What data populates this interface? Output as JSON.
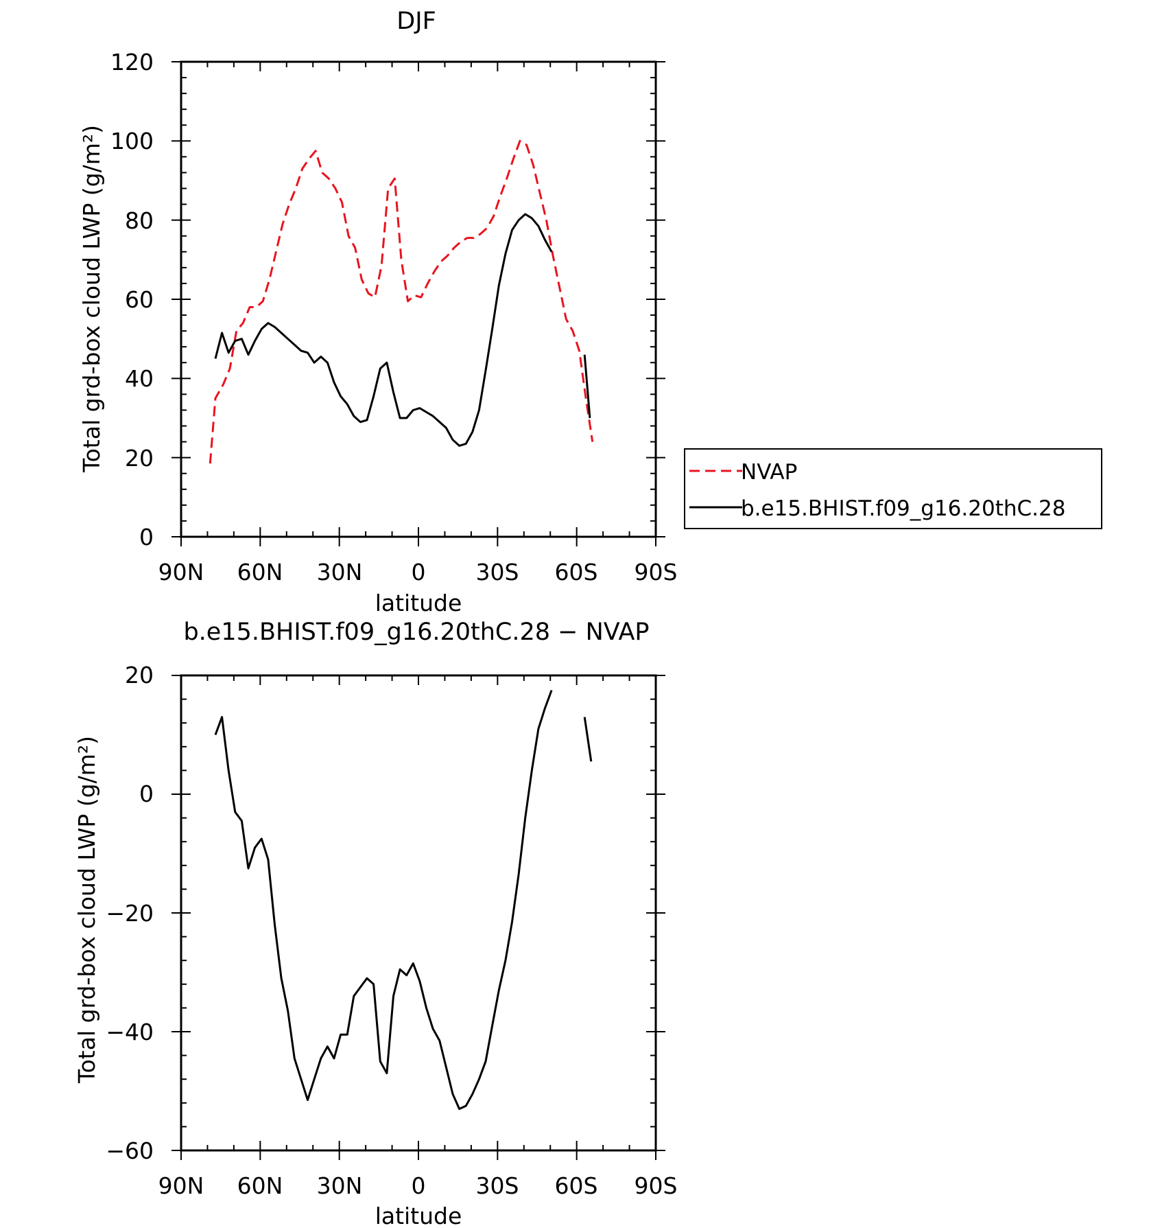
{
  "colors": {
    "nvap": "#e8141e",
    "model": "#000000",
    "axes": "#000000",
    "background": "#ffffff"
  },
  "chart_data": [
    {
      "type": "line",
      "title": "DJF",
      "xlabel": "latitude",
      "ylabel": "Total grd-box cloud LWP (g/m²)",
      "xlim": [
        -90,
        90
      ],
      "ylim": [
        0,
        120
      ],
      "grid": false,
      "legend_position": "right",
      "x_tick_values": [
        -90,
        -60,
        -30,
        0,
        30,
        60,
        90
      ],
      "x_tick_labels": [
        "90N",
        "60N",
        "30N",
        "0",
        "30S",
        "60S",
        "90S"
      ],
      "y_tick_values": [
        0,
        20,
        40,
        60,
        80,
        100,
        120
      ],
      "y_tick_labels": [
        "0",
        "20",
        "40",
        "60",
        "80",
        "100",
        "120"
      ],
      "series": [
        {
          "name": "NVAP",
          "color": "#e8141e",
          "dash": "dashed",
          "segments": [
            [
              [
                -79,
                18.5
              ],
              [
                -77,
                35
              ],
              [
                -74,
                38.5
              ],
              [
                -71.5,
                42.5
              ],
              [
                -69,
                52
              ],
              [
                -66.5,
                54
              ],
              [
                -64,
                58
              ],
              [
                -61.5,
                58
              ],
              [
                -59,
                59.5
              ],
              [
                -56.5,
                65
              ],
              [
                -54,
                72
              ],
              [
                -51.5,
                79
              ],
              [
                -49,
                84
              ],
              [
                -46.5,
                88
              ],
              [
                -44,
                93
              ],
              [
                -41.5,
                95.5
              ],
              [
                -39,
                97.5
              ],
              [
                -36.5,
                92
              ],
              [
                -34,
                90.5
              ],
              [
                -31.5,
                88
              ],
              [
                -29,
                84.5
              ],
              [
                -26.5,
                76
              ],
              [
                -24,
                73
              ],
              [
                -21.5,
                65
              ],
              [
                -19,
                61.5
              ],
              [
                -16.5,
                60.5
              ],
              [
                -14,
                68.5
              ],
              [
                -11.5,
                88
              ],
              [
                -9,
                90.5
              ],
              [
                -6.5,
                70
              ],
              [
                -4,
                59.5
              ],
              [
                -1.5,
                61
              ],
              [
                1,
                60.5
              ],
              [
                3.5,
                64
              ],
              [
                6,
                67
              ],
              [
                8.5,
                69.5
              ],
              [
                11,
                71
              ],
              [
                13.5,
                73
              ],
              [
                16,
                74.5
              ],
              [
                18.5,
                75.5
              ],
              [
                21,
                75.5
              ],
              [
                23.5,
                76.5
              ],
              [
                26,
                78
              ],
              [
                28.5,
                81
              ],
              [
                31,
                86
              ],
              [
                33.5,
                90.5
              ],
              [
                36,
                95.5
              ],
              [
                38.5,
                100
              ],
              [
                41,
                99
              ],
              [
                43.5,
                94
              ],
              [
                46,
                87
              ],
              [
                48.5,
                80
              ],
              [
                51,
                71
              ],
              [
                53.5,
                63
              ],
              [
                56,
                55
              ],
              [
                58.5,
                52
              ],
              [
                61,
                47
              ],
              [
                63.5,
                35
              ],
              [
                66,
                24
              ]
            ]
          ]
        },
        {
          "name": "b.e15.BHIST.f09_g16.20thC.28",
          "color": "#000000",
          "dash": "solid",
          "segments": [
            [
              [
                -77,
                45
              ],
              [
                -74.5,
                51.5
              ],
              [
                -72,
                46.5
              ],
              [
                -69.5,
                49.5
              ],
              [
                -67,
                50
              ],
              [
                -64.5,
                46
              ],
              [
                -62,
                49.5
              ],
              [
                -59.5,
                52.5
              ],
              [
                -57,
                54
              ],
              [
                -54.5,
                53
              ],
              [
                -52,
                51.5
              ],
              [
                -49.5,
                50
              ],
              [
                -47,
                48.5
              ],
              [
                -44.5,
                47
              ],
              [
                -42,
                46.5
              ],
              [
                -39.5,
                44
              ],
              [
                -37,
                45.5
              ],
              [
                -34.5,
                44
              ],
              [
                -32,
                39
              ],
              [
                -29.5,
                35.5
              ],
              [
                -27,
                33.5
              ],
              [
                -24.5,
                30.5
              ],
              [
                -22,
                29
              ],
              [
                -19.5,
                29.5
              ],
              [
                -17,
                35.5
              ],
              [
                -14.5,
                42.5
              ],
              [
                -12,
                44
              ],
              [
                -9.5,
                36.5
              ],
              [
                -7,
                30
              ],
              [
                -4.5,
                30
              ],
              [
                -2,
                32
              ],
              [
                0.5,
                32.5
              ],
              [
                3,
                31.5
              ],
              [
                5.5,
                30.5
              ],
              [
                8,
                29
              ],
              [
                10.5,
                27.5
              ],
              [
                13,
                24.5
              ],
              [
                15.5,
                23
              ],
              [
                18,
                23.5
              ],
              [
                20.5,
                26.5
              ],
              [
                23,
                32
              ],
              [
                25.5,
                42
              ],
              [
                28,
                52.5
              ],
              [
                30.5,
                63.5
              ],
              [
                33,
                71.5
              ],
              [
                35.5,
                77.5
              ],
              [
                38,
                80
              ],
              [
                40.5,
                81.5
              ],
              [
                43,
                80.5
              ],
              [
                45.5,
                78.5
              ],
              [
                48,
                75
              ],
              [
                50.5,
                72
              ]
            ],
            [
              [
                63,
                46
              ],
              [
                65,
                30
              ]
            ]
          ]
        }
      ]
    },
    {
      "type": "line",
      "title": "b.e15.BHIST.f09_g16.20thC.28 − NVAP",
      "xlabel": "latitude",
      "ylabel": "Total grd-box cloud LWP (g/m²)",
      "xlim": [
        -90,
        90
      ],
      "ylim": [
        -60,
        20
      ],
      "grid": false,
      "x_tick_values": [
        -90,
        -60,
        -30,
        0,
        30,
        60,
        90
      ],
      "x_tick_labels": [
        "90N",
        "60N",
        "30N",
        "0",
        "30S",
        "60S",
        "90S"
      ],
      "y_tick_values": [
        -60,
        -40,
        -20,
        0,
        20
      ],
      "y_tick_labels": [
        "−60",
        "−40",
        "−20",
        "0",
        "20"
      ],
      "series": [
        {
          "color": "#000000",
          "dash": "solid",
          "segments": [
            [
              [
                -77,
                10
              ],
              [
                -74.5,
                13
              ],
              [
                -72,
                4
              ],
              [
                -69.5,
                -3
              ],
              [
                -67,
                -4.5
              ],
              [
                -64.5,
                -12.5
              ],
              [
                -62,
                -9
              ],
              [
                -59.5,
                -7.5
              ],
              [
                -57,
                -11
              ],
              [
                -54.5,
                -22
              ],
              [
                -52,
                -31
              ],
              [
                -49.5,
                -36.5
              ],
              [
                -47,
                -44.5
              ],
              [
                -44.5,
                -48
              ],
              [
                -42,
                -51.5
              ],
              [
                -39.5,
                -48
              ],
              [
                -37,
                -44.5
              ],
              [
                -34.5,
                -42.5
              ],
              [
                -32,
                -44.5
              ],
              [
                -29.5,
                -40.5
              ],
              [
                -27,
                -40.5
              ],
              [
                -24.5,
                -34
              ],
              [
                -22,
                -32.5
              ],
              [
                -19.5,
                -31
              ],
              [
                -17,
                -32
              ],
              [
                -14.5,
                -45
              ],
              [
                -12,
                -47
              ],
              [
                -9.5,
                -34
              ],
              [
                -7,
                -29.5
              ],
              [
                -4.5,
                -30.5
              ],
              [
                -2,
                -28.5
              ],
              [
                0.5,
                -31.5
              ],
              [
                3,
                -36
              ],
              [
                5.5,
                -39.5
              ],
              [
                8,
                -41.5
              ],
              [
                10.5,
                -46
              ],
              [
                13,
                -50.5
              ],
              [
                15.5,
                -53
              ],
              [
                18,
                -52.5
              ],
              [
                20.5,
                -50.5
              ],
              [
                23,
                -48
              ],
              [
                25.5,
                -45
              ],
              [
                28,
                -39
              ],
              [
                30.5,
                -33
              ],
              [
                33,
                -28
              ],
              [
                35.5,
                -21.5
              ],
              [
                38,
                -13.5
              ],
              [
                40.5,
                -4
              ],
              [
                43,
                4
              ],
              [
                45.5,
                11
              ],
              [
                48,
                14.5
              ],
              [
                50.5,
                17.5
              ]
            ],
            [
              [
                63,
                13
              ],
              [
                65.5,
                5.5
              ]
            ]
          ]
        }
      ]
    }
  ]
}
